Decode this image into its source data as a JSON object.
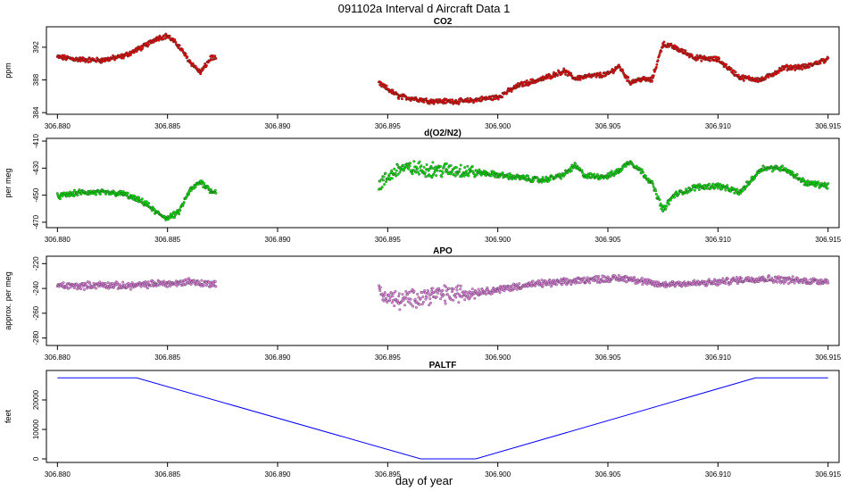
{
  "figure": {
    "title": "091102a   Interval d Aircraft Data 1",
    "xlabel": "day of year"
  },
  "chart_data": [
    {
      "type": "scatter",
      "title": "CO2",
      "ylabel": "ppm",
      "xlim": [
        306.8795,
        306.9155
      ],
      "ylim": [
        383.8,
        394.5
      ],
      "xticks": [
        "306.880",
        "306.885",
        "306.890",
        "306.895",
        "306.900",
        "306.905",
        "306.910",
        "306.915"
      ],
      "yticks": [
        "384",
        "388",
        "392"
      ],
      "color": "#ff0000",
      "series": [
        {
          "x": [
            306.88,
            306.881,
            306.882,
            306.883,
            306.884,
            306.8845,
            306.885,
            306.8855,
            306.886,
            306.8865,
            306.887,
            306.8872,
            306.8946,
            306.8955,
            306.897,
            306.8985,
            306.9,
            306.901,
            306.902,
            306.903,
            306.9035,
            306.904,
            306.905,
            306.9055,
            306.906,
            306.9065,
            306.907,
            306.9075,
            306.908,
            306.909,
            306.91,
            306.911,
            306.912,
            306.913,
            306.914,
            306.915
          ],
          "y": [
            390.8,
            390.5,
            390.4,
            390.9,
            392.2,
            393.1,
            393.4,
            392.2,
            390.3,
            388.9,
            390.8,
            390.5,
            387.6,
            386.0,
            385.4,
            385.4,
            385.9,
            387.4,
            388.1,
            389.1,
            388.2,
            388.4,
            388.7,
            389.7,
            387.7,
            388.1,
            388.0,
            392.4,
            392.0,
            390.7,
            390.5,
            388.3,
            388.0,
            389.5,
            389.6,
            390.6
          ]
        }
      ]
    },
    {
      "type": "scatter",
      "title": "d(O2/N2)",
      "ylabel": "per meg",
      "xlim": [
        306.8795,
        306.9155
      ],
      "ylim": [
        -474,
        -408
      ],
      "xticks": [
        "306.880",
        "306.885",
        "306.890",
        "306.895",
        "306.900",
        "306.905",
        "306.910",
        "306.915"
      ],
      "yticks": [
        "-410",
        "-430",
        "-450",
        "-470"
      ],
      "color": "#00ee00",
      "series": [
        {
          "x": [
            306.88,
            306.881,
            306.882,
            306.883,
            306.884,
            306.8845,
            306.885,
            306.8855,
            306.886,
            306.8865,
            306.887,
            306.8872,
            306.8946,
            306.8955,
            306.897,
            306.8985,
            306.9,
            306.901,
            306.902,
            306.903,
            306.9035,
            306.904,
            306.905,
            306.9055,
            306.906,
            306.9065,
            306.907,
            306.9075,
            306.908,
            306.909,
            306.91,
            306.911,
            306.912,
            306.913,
            306.914,
            306.915
          ],
          "y": [
            -451,
            -448,
            -448,
            -449,
            -456,
            -463,
            -467,
            -463,
            -447,
            -440,
            -447,
            -447,
            -443,
            -430,
            -431,
            -432,
            -435,
            -437,
            -439,
            -435,
            -428,
            -436,
            -436,
            -432,
            -425,
            -432,
            -441,
            -461,
            -450,
            -444,
            -443,
            -448,
            -430,
            -430,
            -441,
            -443
          ]
        }
      ]
    },
    {
      "type": "scatter",
      "title": "APO",
      "ylabel": "approx. per meg",
      "xlim": [
        306.8795,
        306.9155
      ],
      "ylim": [
        -286,
        -214
      ],
      "xticks": [
        "306.880",
        "306.885",
        "306.890",
        "306.895",
        "306.900",
        "306.905",
        "306.910",
        "306.915"
      ],
      "yticks": [
        "-220",
        "-240",
        "-260",
        "-280"
      ],
      "color": "#ee82ee",
      "series": [
        {
          "x": [
            306.88,
            306.881,
            306.882,
            306.883,
            306.884,
            306.8845,
            306.885,
            306.8855,
            306.886,
            306.8865,
            306.887,
            306.8872,
            306.8946,
            306.8955,
            306.897,
            306.8985,
            306.9,
            306.901,
            306.902,
            306.903,
            306.9035,
            306.904,
            306.905,
            306.9055,
            306.906,
            306.9065,
            306.907,
            306.9075,
            306.908,
            306.909,
            306.91,
            306.911,
            306.912,
            306.913,
            306.914,
            306.915
          ],
          "y": [
            -238,
            -238,
            -237,
            -238,
            -237,
            -236,
            -236,
            -236,
            -234,
            -236,
            -236,
            -236,
            -244,
            -250,
            -245,
            -244,
            -241,
            -238,
            -236,
            -235,
            -234,
            -233,
            -232,
            -232,
            -232,
            -234,
            -236,
            -237,
            -236,
            -236,
            -235,
            -233,
            -232,
            -233,
            -234,
            -234
          ]
        }
      ]
    },
    {
      "type": "line",
      "title": "PALTF",
      "ylabel": "feet",
      "xlim": [
        306.8795,
        306.9155
      ],
      "ylim": [
        -1200,
        30000
      ],
      "xticks": [
        "306.880",
        "306.885",
        "306.890",
        "306.895",
        "306.900",
        "306.905",
        "306.910",
        "306.915"
      ],
      "yticks": [
        "0",
        "10000",
        "20000"
      ],
      "color": "#0000ff",
      "series": [
        {
          "x": [
            306.88,
            306.8836,
            306.8965,
            306.899,
            306.9117,
            306.915
          ],
          "y": [
            27500,
            27500,
            0,
            0,
            27500,
            27500
          ]
        }
      ]
    }
  ]
}
